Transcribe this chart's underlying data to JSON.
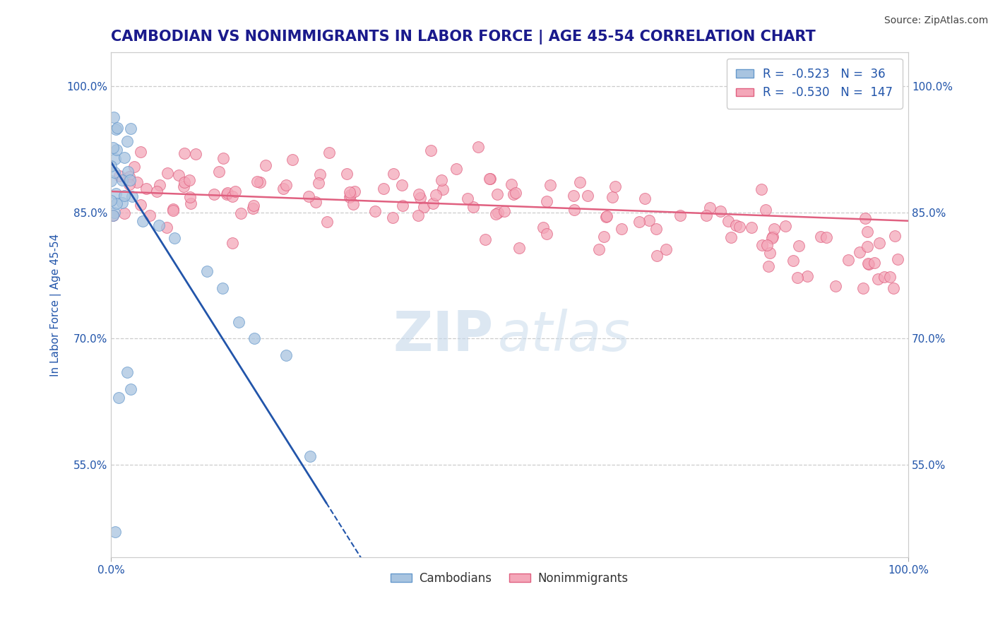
{
  "title": "CAMBODIAN VS NONIMMIGRANTS IN LABOR FORCE | AGE 45-54 CORRELATION CHART",
  "source": "Source: ZipAtlas.com",
  "ylabel": "In Labor Force | Age 45-54",
  "xlim": [
    0.0,
    1.0
  ],
  "ylim": [
    0.44,
    1.04
  ],
  "yticks": [
    0.55,
    0.7,
    0.85,
    1.0
  ],
  "ytick_labels": [
    "55.0%",
    "70.0%",
    "85.0%",
    "100.0%"
  ],
  "cambodian_color": "#a8c4e0",
  "cambodian_edge": "#6699cc",
  "nonimmigrant_color": "#f4a7b9",
  "nonimmigrant_edge": "#e06080",
  "trend_cambodian_color": "#2255aa",
  "trend_nonimmigrant_color": "#e06080",
  "R_cambodian": -0.523,
  "N_cambodian": 36,
  "R_nonimmigrant": -0.53,
  "N_nonimmigrant": 147,
  "legend_cambodians": "Cambodians",
  "legend_nonimmigrants": "Nonimmigrants",
  "title_color": "#1a1a8c",
  "axis_label_color": "#2255aa",
  "tick_color": "#2255aa",
  "watermark_zip": "ZIP",
  "watermark_atlas": "atlas",
  "background_color": "#ffffff",
  "grid_color": "#cccccc",
  "title_fontsize": 15,
  "axis_label_fontsize": 11,
  "tick_fontsize": 11,
  "source_fontsize": 10,
  "legend_fontsize": 12
}
